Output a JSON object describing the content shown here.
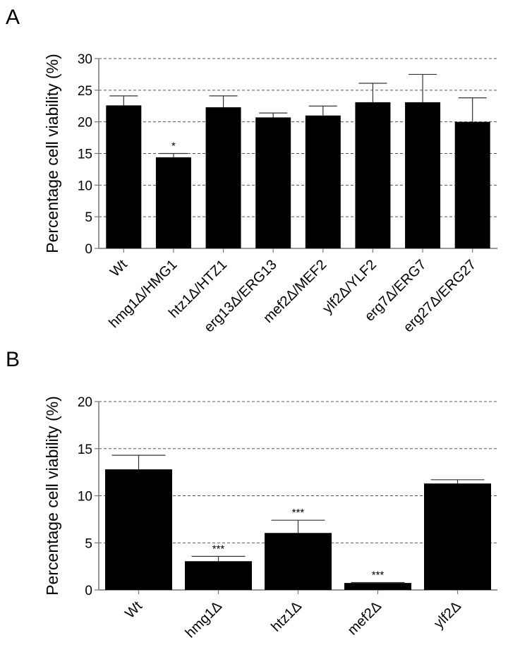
{
  "chart_data": [
    {
      "panel": "A",
      "type": "bar",
      "ylabel": "Percentage cell viability (%)",
      "ylim": [
        0,
        30
      ],
      "yticks": [
        "0",
        "5",
        "10",
        "15",
        "20",
        "25",
        "30"
      ],
      "grid": "horizontal dashed",
      "categories": [
        "Wt",
        "hmg1Δ/HMG1",
        "htz1Δ/HTZ1",
        "erg13Δ/ERG13",
        "mef2Δ/MEF2",
        "ylf2Δ/YLF2",
        "erg7Δ/ERG7",
        "erg27Δ/ERG27"
      ],
      "values": [
        22.6,
        14.4,
        22.3,
        20.7,
        21.0,
        23.1,
        23.1,
        20.0
      ],
      "error_upper": [
        24.1,
        15.0,
        24.1,
        21.4,
        22.5,
        26.1,
        27.5,
        23.8
      ],
      "annotations": [
        "",
        "*",
        "",
        "",
        "",
        "",
        "",
        ""
      ],
      "bar_color": "#000000"
    },
    {
      "panel": "B",
      "type": "bar",
      "ylabel": "Percentage cell viability (%)",
      "ylim": [
        0,
        20
      ],
      "yticks": [
        "0",
        "5",
        "10",
        "15",
        "20"
      ],
      "grid": "horizontal dashed",
      "categories": [
        "Wt",
        "hmg1Δ",
        "htz1Δ",
        "mef2Δ",
        "ylf2Δ"
      ],
      "values": [
        12.8,
        3.05,
        6.05,
        0.74,
        11.3
      ],
      "error_upper": [
        14.3,
        3.57,
        7.4,
        0.79,
        11.7
      ],
      "annotations": [
        "",
        "***",
        "***",
        "***",
        ""
      ],
      "bar_color": "#000000"
    }
  ]
}
